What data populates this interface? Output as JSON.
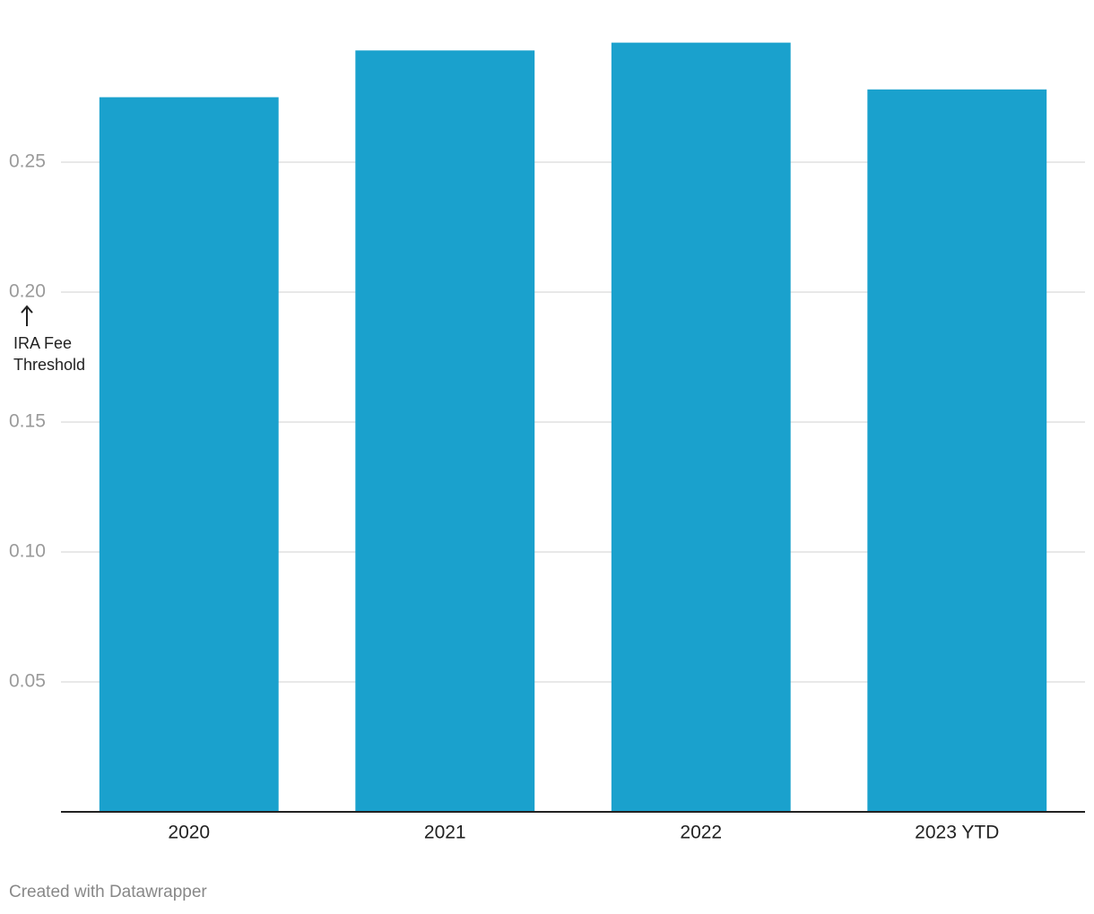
{
  "chart_data": {
    "type": "bar",
    "categories": [
      "2020",
      "2021",
      "2022",
      "2023 YTD"
    ],
    "values": [
      0.275,
      0.293,
      0.296,
      0.278
    ],
    "color": "#1aa1cd",
    "ylim": [
      0,
      0.3
    ],
    "yticks": [
      0.05,
      {
        "value": 0.1,
        "label": "0.10"
      },
      0.15,
      {
        "value": 0.2,
        "label": "0.20"
      },
      0.25
    ],
    "grid": true,
    "annotation": "IRA Fee Threshold",
    "footer": "Created with Datawrapper"
  }
}
